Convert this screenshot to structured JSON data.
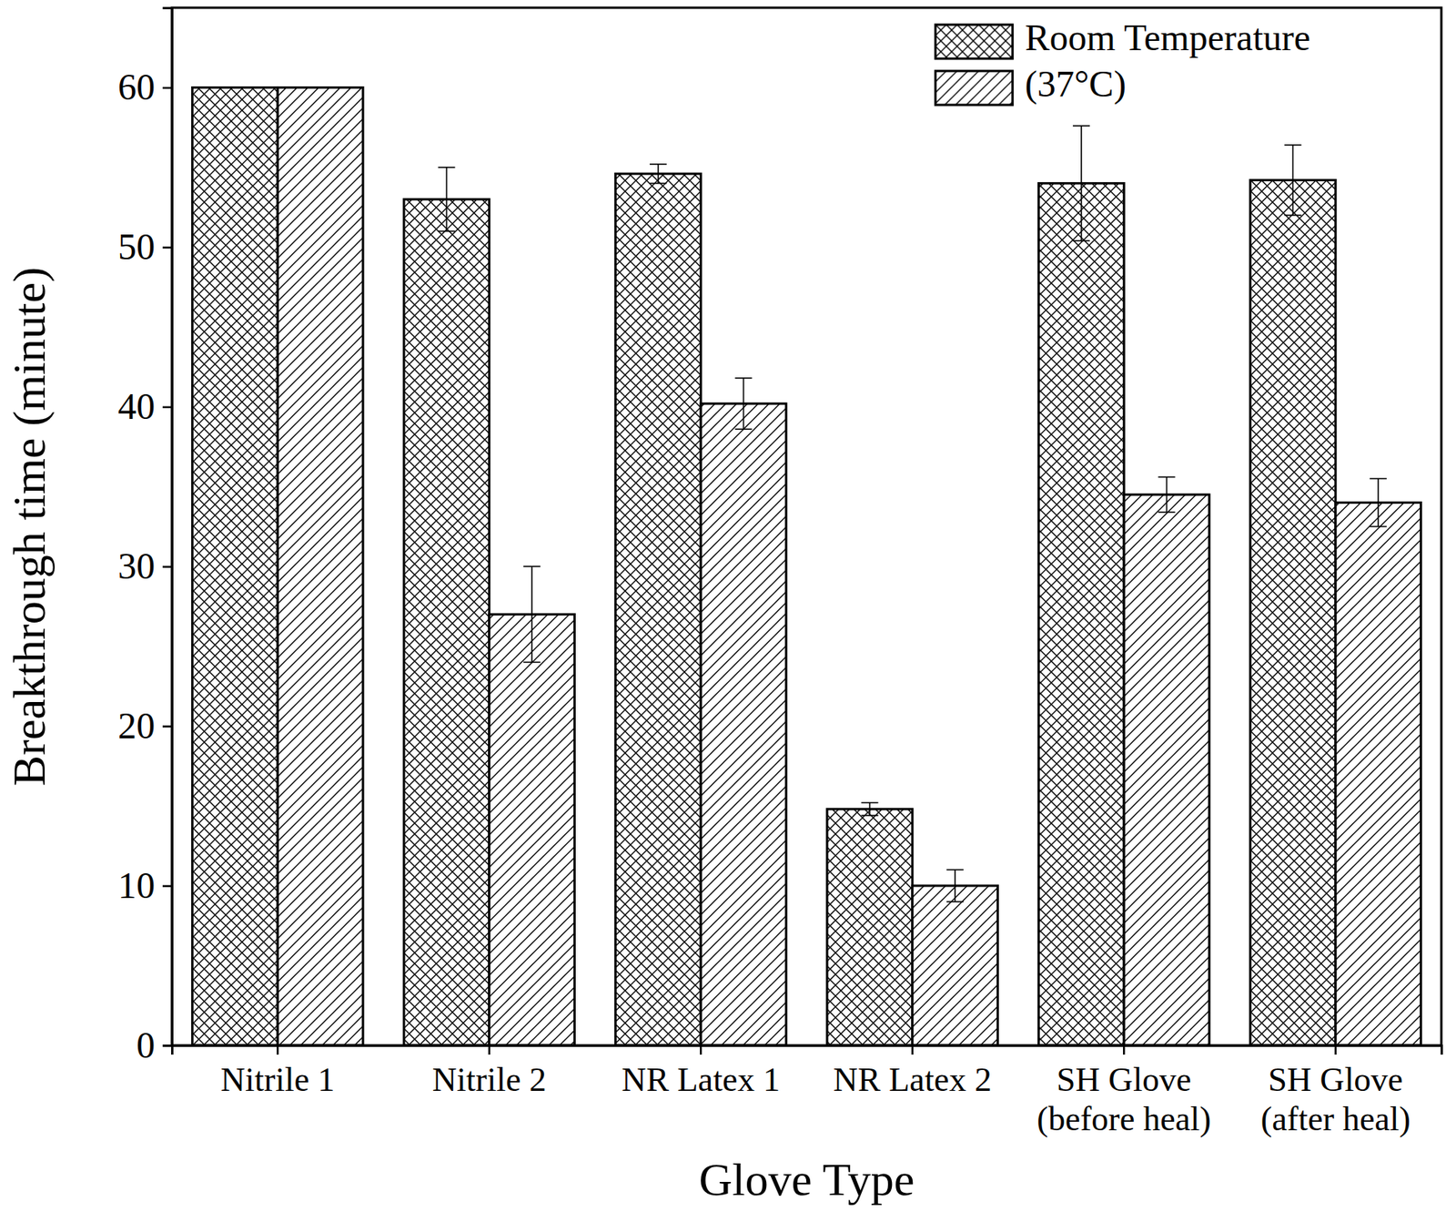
{
  "chart_data": {
    "type": "bar",
    "x_label": "Glove Type",
    "y_label": "Breakthrough time (minute)",
    "categories": [
      "Nitrile 1",
      "Nitrile 2",
      "NR Latex 1",
      "NR Latex 2",
      "SH Glove\n(before heal)",
      "SH Glove\n(after heal)"
    ],
    "series": [
      {
        "name": "Room Temperature",
        "color": "#000000",
        "marker": "crosshatch",
        "values": [
          60,
          53,
          54.6,
          14.8,
          54,
          54.2
        ],
        "errors": [
          null,
          2,
          0.6,
          0.4,
          3.6,
          2.2
        ]
      },
      {
        "name": "(37°C)",
        "color": "#000000",
        "marker": "hatch",
        "values": [
          60,
          27,
          40.2,
          10,
          34.5,
          34
        ],
        "errors": [
          null,
          3,
          1.6,
          1,
          1.1,
          1.5
        ]
      }
    ],
    "ylim": [
      0,
      65
    ],
    "yticks": [
      0,
      10,
      20,
      30,
      40,
      50,
      60
    ],
    "grid": false,
    "legend": "upper right"
  }
}
